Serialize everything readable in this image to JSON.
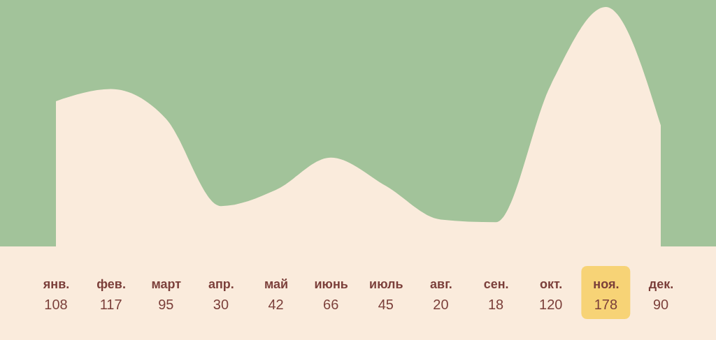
{
  "chart_data": {
    "type": "area",
    "categories": [
      "янв.",
      "фев.",
      "март",
      "апр.",
      "май",
      "июнь",
      "июль",
      "авг.",
      "сен.",
      "окт.",
      "ноя.",
      "дек."
    ],
    "series": [
      {
        "color": "#faebdc",
        "values": [
          108,
          117,
          95,
          30,
          42,
          66,
          45,
          20,
          18,
          120,
          178,
          90
        ]
      }
    ],
    "data_labels": true
  }
}
